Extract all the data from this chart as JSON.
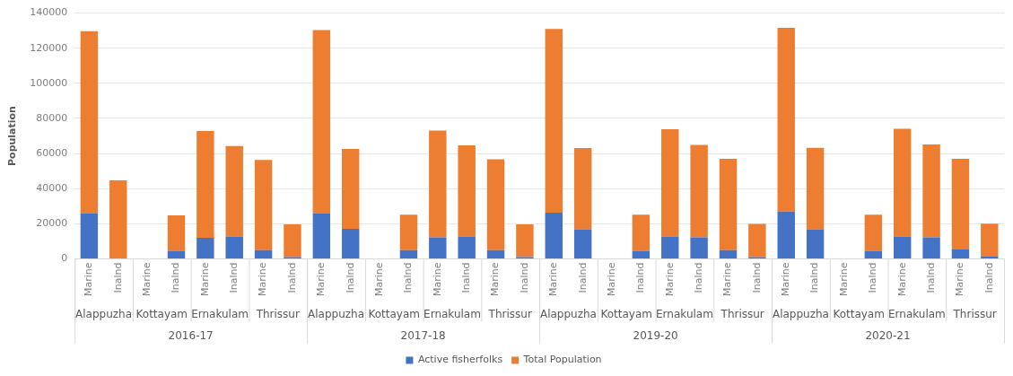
{
  "chart_data": {
    "type": "bar",
    "stacked": true,
    "ylabel": "Population",
    "categories": [
      "Marine",
      "Inalnd",
      "Marine",
      "Inalnd",
      "Marine",
      "Inalnd",
      "Marine",
      "Inalnd",
      "Marine",
      "Inalnd",
      "Marine",
      "Inalnd",
      "Marine",
      "Inalnd",
      "Marine",
      "Inalnd",
      "Marine",
      "Inalnd",
      "Marine",
      "Inalnd",
      "Marine",
      "Inalnd",
      "Marine",
      "Inalnd",
      "Marine",
      "Inalnd",
      "Marine",
      "Inalnd",
      "Marine",
      "Inalnd",
      "Marine",
      "Inalnd"
    ],
    "series": [
      {
        "name": "Active fisherfolks",
        "color": "#4472c4",
        "values": [
          26000,
          0,
          null,
          4600,
          12000,
          12700,
          4900,
          1000,
          26100,
          17100,
          null,
          4900,
          12300,
          12800,
          4900,
          1000,
          26300,
          16800,
          null,
          4600,
          12700,
          12300,
          4900,
          1000,
          27000,
          16900,
          null,
          4600,
          12700,
          12300,
          5300,
          1200
        ]
      },
      {
        "name": "Total Population",
        "color": "#ed7d31",
        "values": [
          103700,
          44700,
          null,
          20200,
          60800,
          51500,
          51400,
          18600,
          104200,
          45500,
          null,
          20200,
          60800,
          51800,
          51800,
          18600,
          104700,
          46300,
          null,
          20500,
          61100,
          52600,
          52100,
          18900,
          104600,
          46400,
          null,
          20500,
          61400,
          52900,
          51700,
          18800
        ]
      }
    ],
    "ylim": [
      0,
      140000
    ],
    "yticks": [
      0,
      20000,
      40000,
      60000,
      80000,
      100000,
      120000,
      140000
    ],
    "grid": "y",
    "legend": "bottom",
    "annotations": [
      "Alappuzha",
      "Kottayam",
      "Ernakulam",
      "Thrissur",
      "Alappuzha",
      "Kottayam",
      "Ernakulam",
      "Thrissur",
      "Alappuzha",
      "Kottayam",
      "Ernakulam",
      "Thrissur",
      "Alappuzha",
      "Kottayam",
      "Ernakulam",
      "Thrissur",
      "2016-17",
      "2017-18",
      "2019-20",
      "2020-21"
    ]
  }
}
